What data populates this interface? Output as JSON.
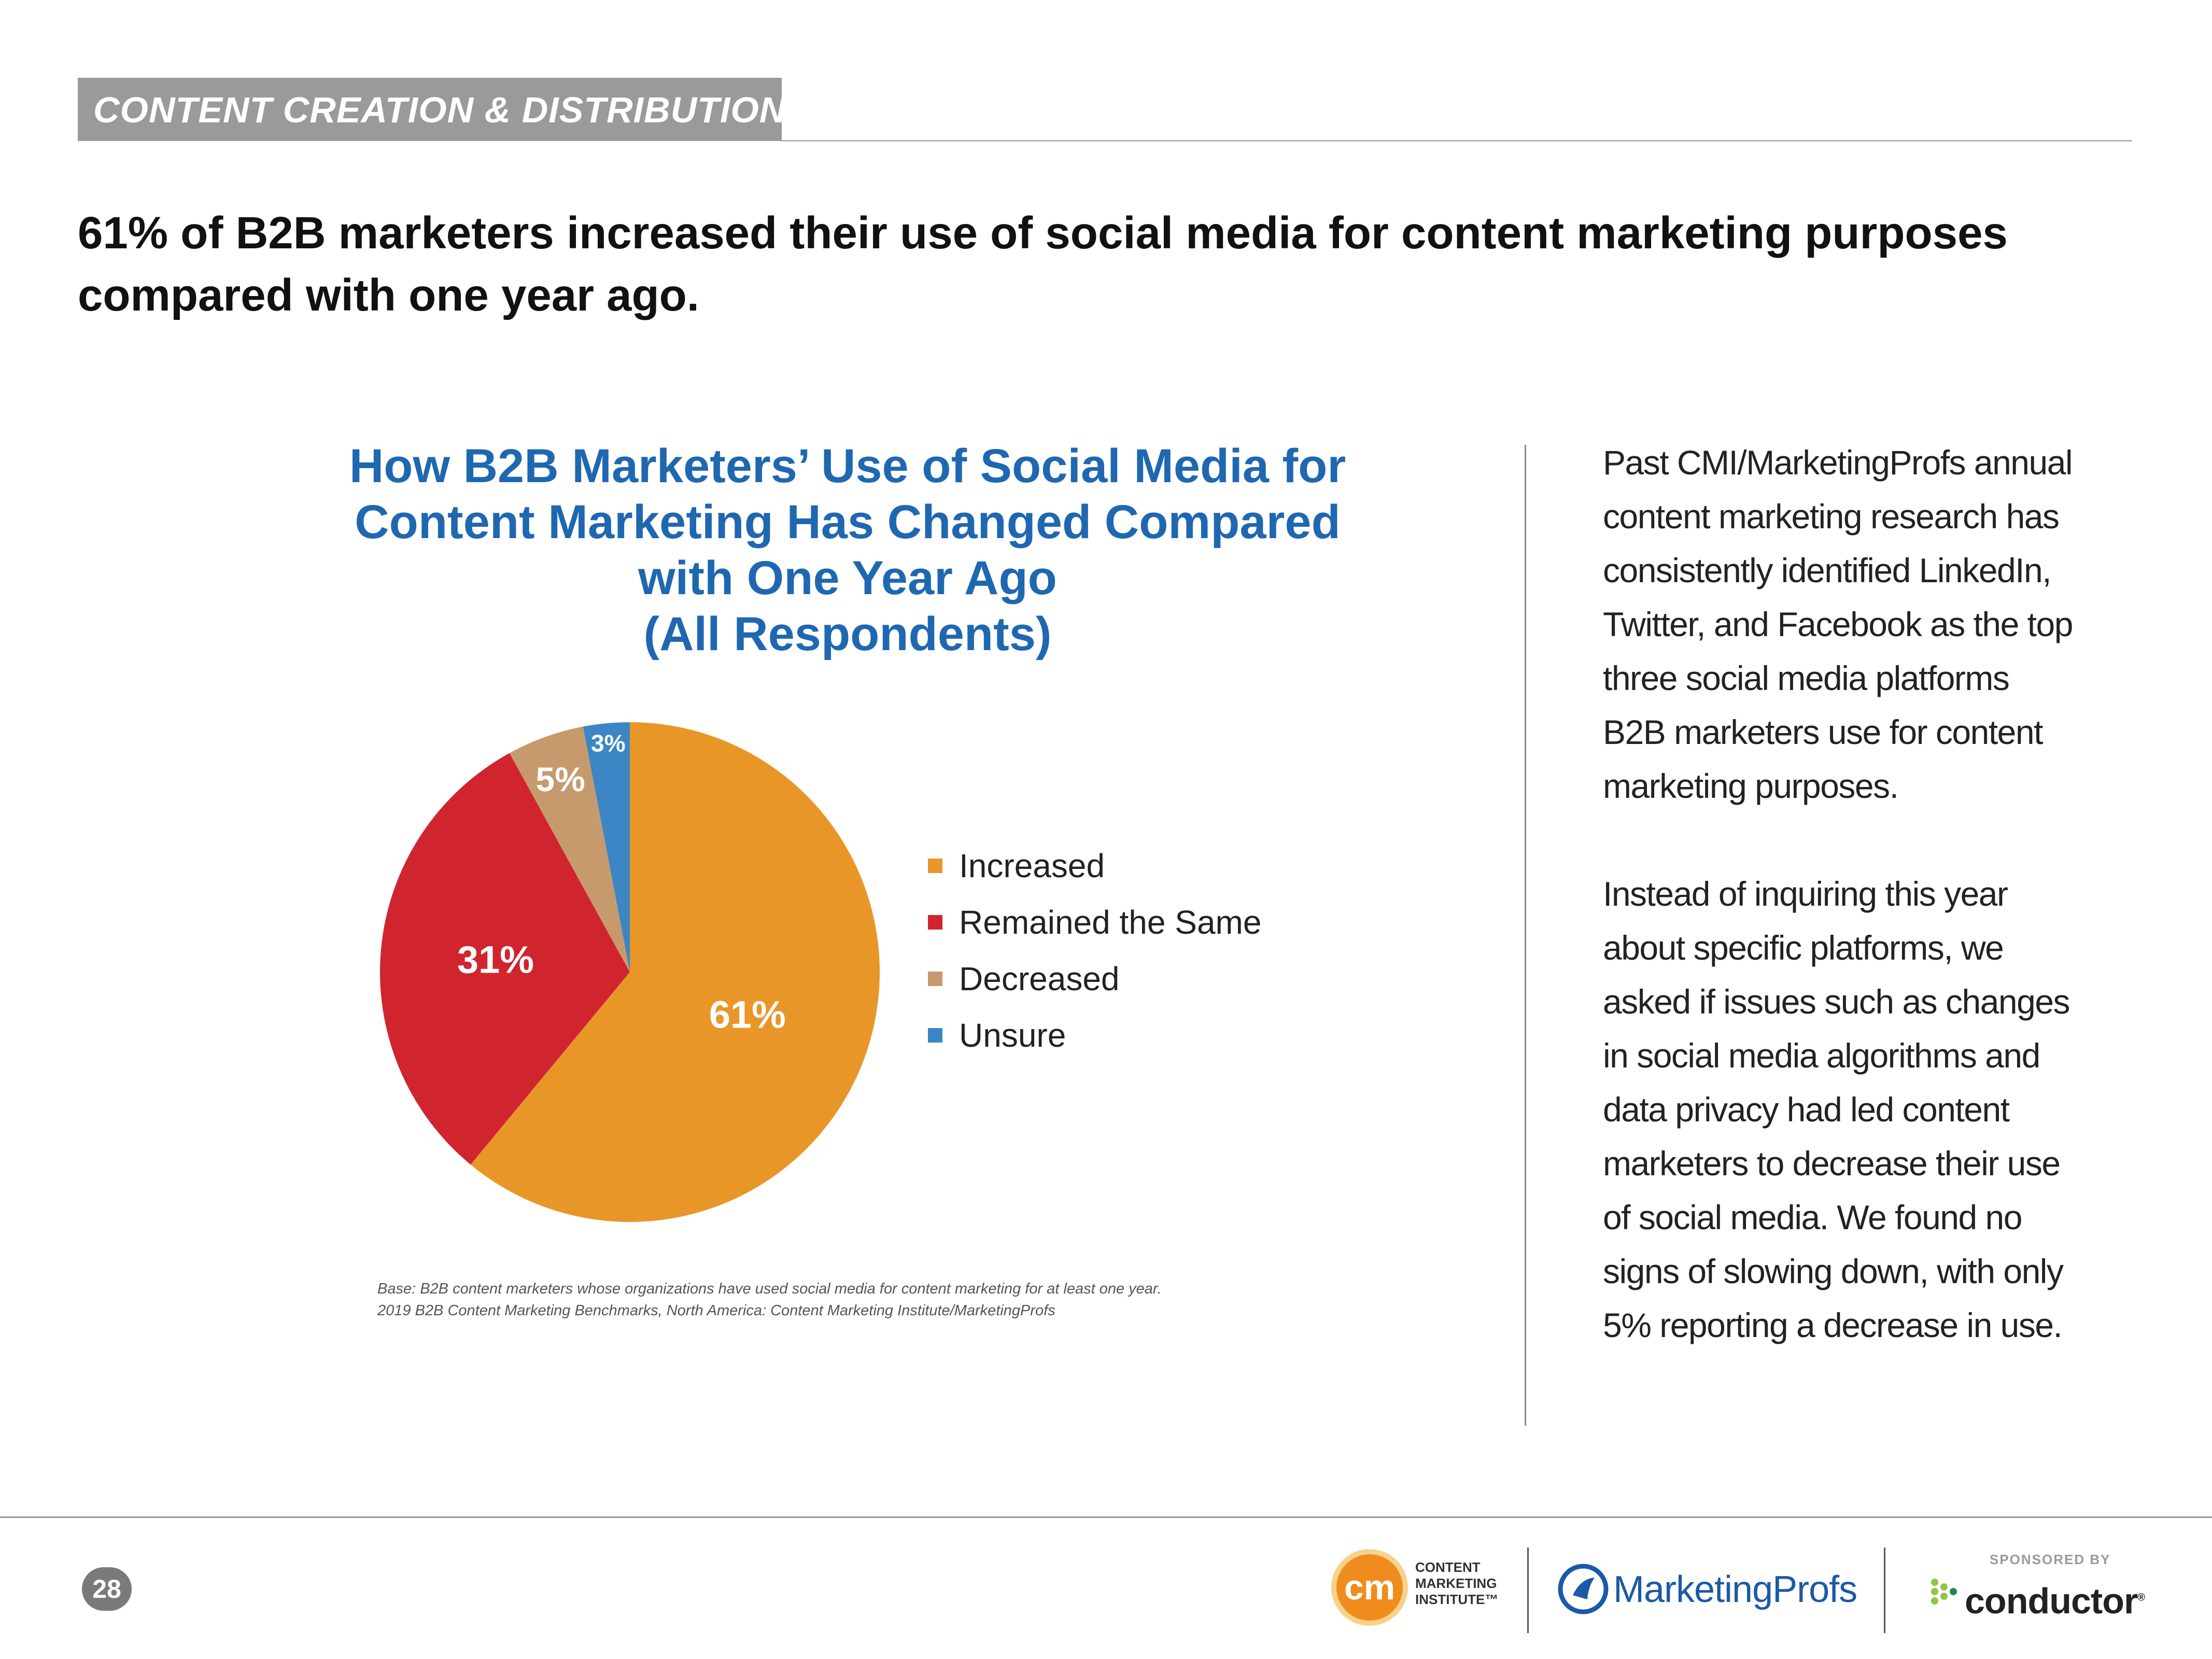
{
  "section": {
    "label": "CONTENT CREATION & DISTRIBUTION"
  },
  "headline": {
    "line1": "61% of B2B marketers increased their use of social media for content marketing purposes",
    "line2": "compared with one year ago."
  },
  "chart_data": {
    "type": "pie",
    "title_lines": [
      "How B2B Marketers’ Use of Social Media for",
      "Content Marketing Has Changed Compared",
      "with One Year Ago",
      "(All Respondents)"
    ],
    "categories": [
      "Increased",
      "Remained the Same",
      "Decreased",
      "Unsure"
    ],
    "values": [
      61,
      31,
      5,
      3
    ],
    "data_labels": [
      "61%",
      "31%",
      "5%",
      "3%"
    ],
    "colors": [
      "#e99628",
      "#d0252e",
      "#c69a6d",
      "#3c86c6"
    ],
    "legend_position": "right",
    "start_angle_deg": 0,
    "direction": "clockwise"
  },
  "footnote": {
    "line1": "Base: B2B content marketers whose organizations have used social media for content marketing for at least one year.",
    "line2": "2019 B2B Content Marketing Benchmarks, North America: Content Marketing Institute/MarketingProfs"
  },
  "sidebar": {
    "para1": [
      "Past CMI/MarketingProfs annual",
      "content marketing research has",
      "consistently identified LinkedIn,",
      "Twitter, and Facebook as the top",
      "three social media platforms",
      "B2B marketers use for content",
      "marketing purposes."
    ],
    "para2": [
      "Instead of inquiring this year",
      "about specific platforms, we",
      "asked if issues such as changes",
      "in social media algorithms and",
      "data privacy had led content",
      "marketers to decrease their use",
      "of social media. We found no",
      "signs of slowing down, with only",
      "5% reporting a decrease in use."
    ]
  },
  "footer": {
    "page_number": "28",
    "cmi_mark": "cm",
    "cmi_lines": [
      "CONTENT",
      "MARKETING",
      "INSTITUTE™"
    ],
    "marketingprofs": "MarketingProfs",
    "sponsored_by": "SPONSORED BY",
    "conductor": "conductor",
    "conductor_mark": "®"
  }
}
